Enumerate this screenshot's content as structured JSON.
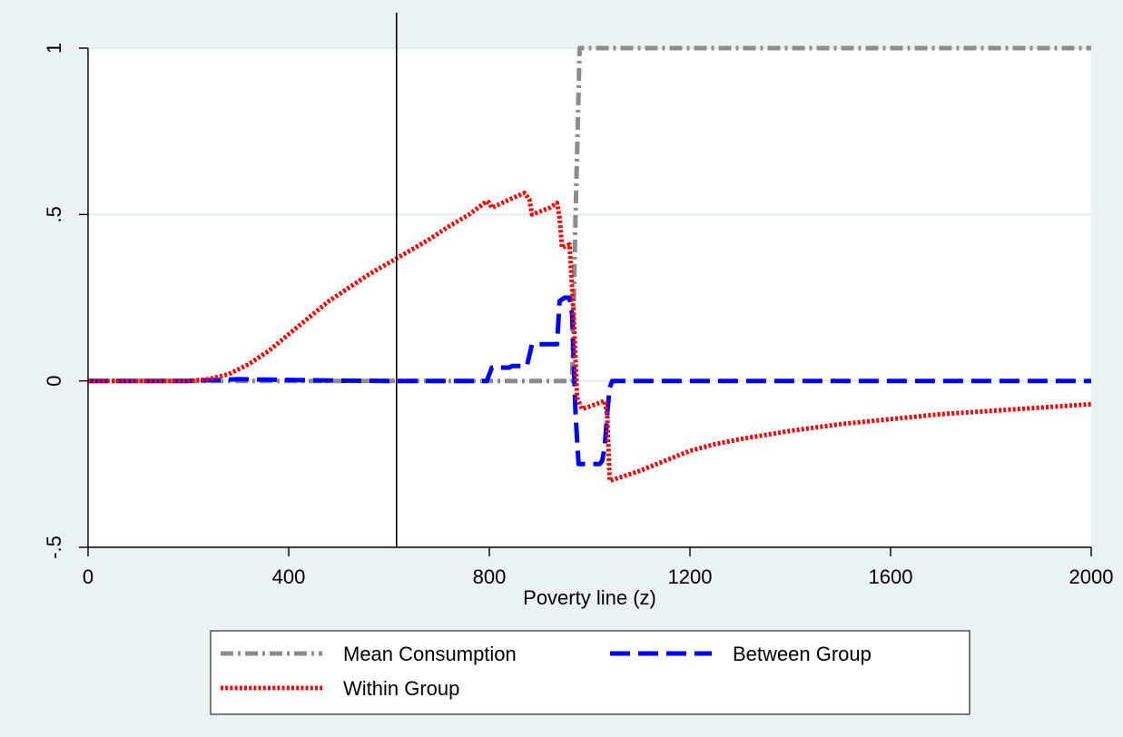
{
  "chart_data": {
    "type": "line",
    "title": "",
    "xlabel": "Poverty line (z)",
    "ylabel": "",
    "xlim": [
      0,
      2000
    ],
    "ylim": [
      -0.5,
      1
    ],
    "x_ticks": [
      0,
      400,
      800,
      1200,
      1600,
      2000
    ],
    "x_tick_labels": [
      "0",
      "400",
      "800",
      "1200",
      "1600",
      "2000"
    ],
    "y_ticks": [
      -0.5,
      0,
      0.5,
      1
    ],
    "y_tick_labels": [
      "-.5",
      "0",
      ".5",
      "1"
    ],
    "grid": "horizontal",
    "reference_line_x": 615,
    "legend_position": "bottom",
    "series": [
      {
        "name": "Mean Consumption",
        "color": "#8c8c8c",
        "style": "dash-dot",
        "points": [
          [
            0,
            0
          ],
          [
            965,
            0
          ],
          [
            972,
            0.5
          ],
          [
            980,
            1
          ],
          [
            2000,
            1
          ]
        ]
      },
      {
        "name": "Between Group",
        "color": "#0000ff",
        "style": "long-dash",
        "points": [
          [
            0,
            0
          ],
          [
            200,
            0
          ],
          [
            300,
            0.005
          ],
          [
            400,
            0.003
          ],
          [
            500,
            0.001
          ],
          [
            600,
            0
          ],
          [
            795,
            0
          ],
          [
            805,
            0.04
          ],
          [
            840,
            0.04
          ],
          [
            845,
            0.045
          ],
          [
            875,
            0.045
          ],
          [
            885,
            0.11
          ],
          [
            920,
            0.11
          ],
          [
            935,
            0.11
          ],
          [
            940,
            0.24
          ],
          [
            950,
            0.25
          ],
          [
            960,
            0.25
          ],
          [
            965,
            0.2
          ],
          [
            972,
            -0.1
          ],
          [
            978,
            -0.25
          ],
          [
            1020,
            -0.25
          ],
          [
            1025,
            -0.24
          ],
          [
            1030,
            -0.2
          ],
          [
            1035,
            -0.1
          ],
          [
            1040,
            -0.02
          ],
          [
            1045,
            0
          ],
          [
            1200,
            0
          ],
          [
            1600,
            0
          ],
          [
            2000,
            0
          ]
        ]
      },
      {
        "name": "Within Group",
        "color": "#ff0000",
        "style": "dotted",
        "points": [
          [
            0,
            0
          ],
          [
            200,
            0
          ],
          [
            240,
            0.005
          ],
          [
            280,
            0.02
          ],
          [
            320,
            0.05
          ],
          [
            360,
            0.09
          ],
          [
            400,
            0.14
          ],
          [
            440,
            0.19
          ],
          [
            480,
            0.24
          ],
          [
            520,
            0.28
          ],
          [
            560,
            0.32
          ],
          [
            600,
            0.355
          ],
          [
            640,
            0.39
          ],
          [
            680,
            0.425
          ],
          [
            720,
            0.465
          ],
          [
            760,
            0.5
          ],
          [
            795,
            0.54
          ],
          [
            800,
            0.535
          ],
          [
            805,
            0.52
          ],
          [
            840,
            0.545
          ],
          [
            870,
            0.565
          ],
          [
            880,
            0.545
          ],
          [
            885,
            0.5
          ],
          [
            920,
            0.52
          ],
          [
            935,
            0.535
          ],
          [
            940,
            0.49
          ],
          [
            945,
            0.4
          ],
          [
            960,
            0.41
          ],
          [
            968,
            0.2
          ],
          [
            975,
            -0.05
          ],
          [
            985,
            -0.085
          ],
          [
            1030,
            -0.06
          ],
          [
            1035,
            -0.1
          ],
          [
            1040,
            -0.3
          ],
          [
            1060,
            -0.29
          ],
          [
            1100,
            -0.27
          ],
          [
            1150,
            -0.24
          ],
          [
            1200,
            -0.21
          ],
          [
            1250,
            -0.19
          ],
          [
            1300,
            -0.175
          ],
          [
            1400,
            -0.15
          ],
          [
            1500,
            -0.13
          ],
          [
            1600,
            -0.115
          ],
          [
            1700,
            -0.1
          ],
          [
            1800,
            -0.09
          ],
          [
            1900,
            -0.08
          ],
          [
            2000,
            -0.07
          ]
        ]
      }
    ]
  }
}
